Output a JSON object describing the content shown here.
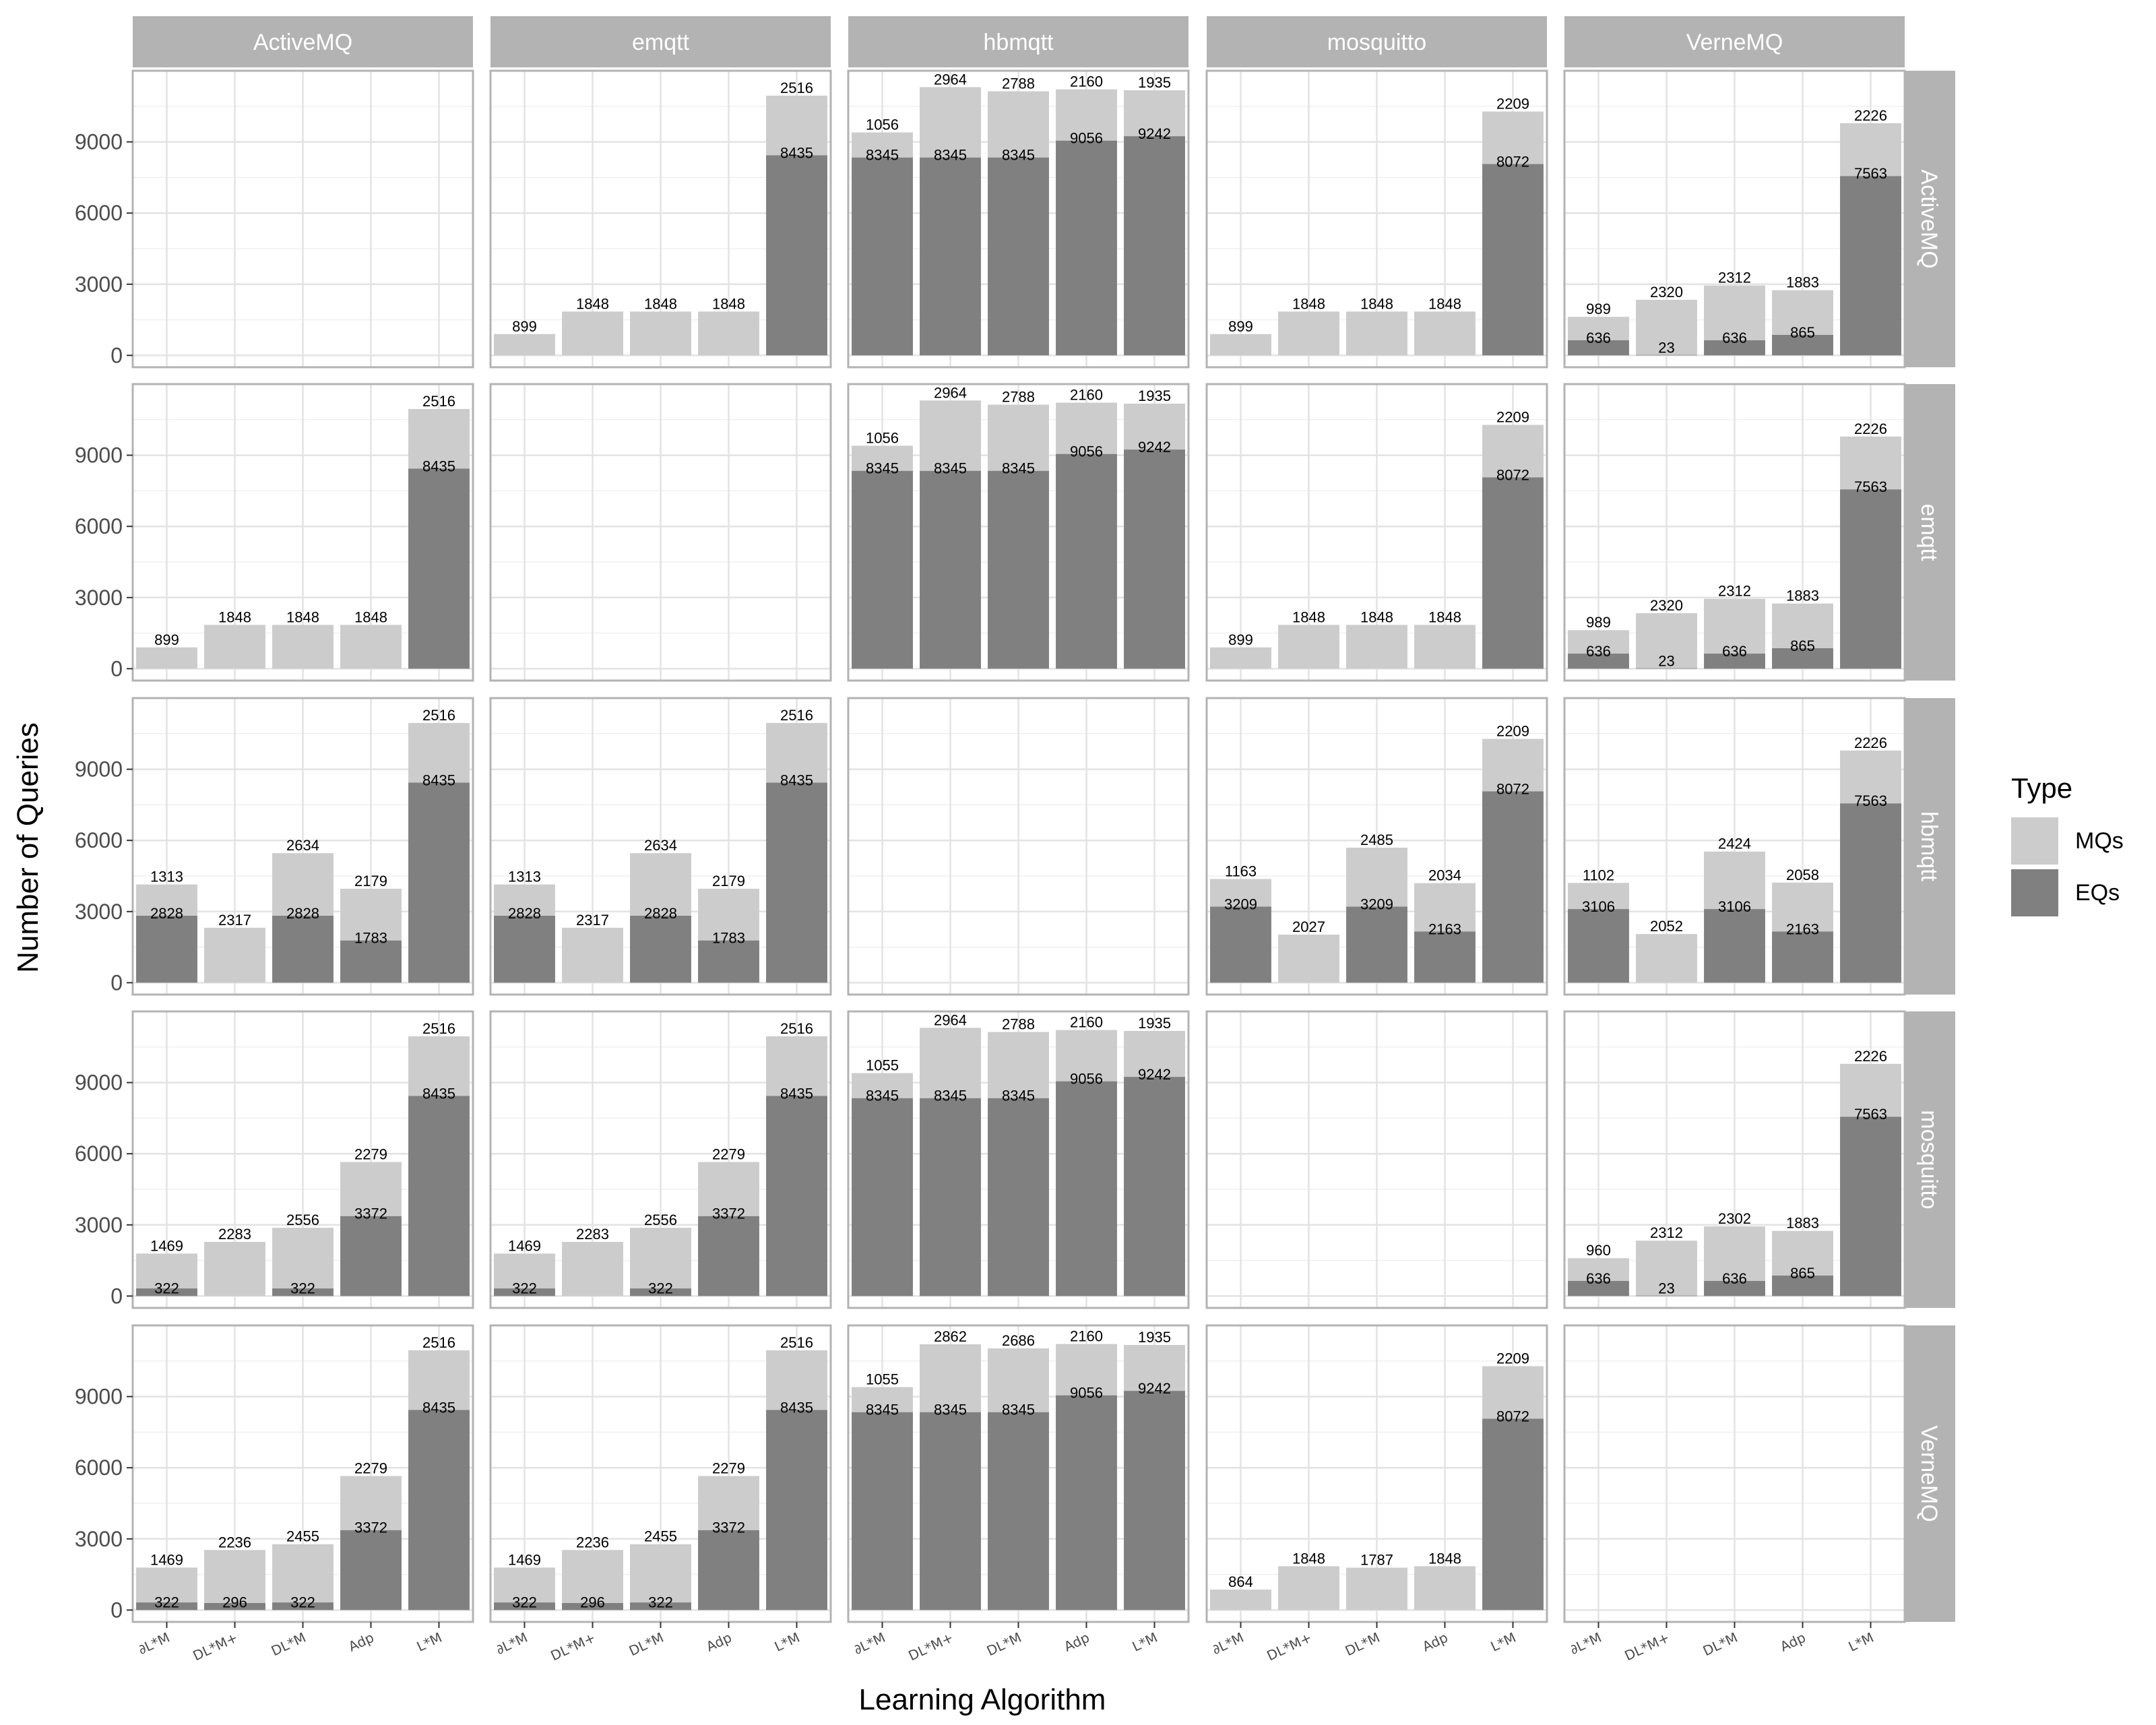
{
  "chart_data": {
    "type": "bar",
    "stacked": true,
    "faceted": true,
    "xlabel": "Learning Algorithm",
    "ylabel": "Number of Queries",
    "categories": [
      "∂L*M",
      "DL*M+",
      "DL*M",
      "Adp",
      "L*M"
    ],
    "column_facets": [
      "ActiveMQ",
      "emqtt",
      "hbmqtt",
      "mosquitto",
      "VerneMQ"
    ],
    "row_facets": [
      "ActiveMQ",
      "emqtt",
      "hbmqtt",
      "mosquitto",
      "VerneMQ"
    ],
    "yticks": [
      0,
      3000,
      6000,
      9000
    ],
    "ylim": [
      -500,
      12000
    ],
    "grid": true,
    "legend": {
      "title": "Type",
      "position": "right",
      "items": [
        {
          "label": "MQs",
          "color": "#cccccc"
        },
        {
          "label": "EQs",
          "color": "#808080"
        }
      ]
    },
    "series_order": [
      "EQs",
      "MQs"
    ],
    "panels": [
      {
        "row": "ActiveMQ",
        "col": "ActiveMQ",
        "empty": true
      },
      {
        "row": "ActiveMQ",
        "col": "emqtt",
        "EQs": [
          0,
          0,
          0,
          0,
          8435
        ],
        "MQs": [
          899,
          1848,
          1848,
          1848,
          2516
        ]
      },
      {
        "row": "ActiveMQ",
        "col": "hbmqtt",
        "EQs": [
          8345,
          8345,
          8345,
          9056,
          9242
        ],
        "MQs": [
          1056,
          2964,
          2788,
          2160,
          1935
        ]
      },
      {
        "row": "ActiveMQ",
        "col": "mosquitto",
        "EQs": [
          0,
          0,
          0,
          0,
          8072
        ],
        "MQs": [
          899,
          1848,
          1848,
          1848,
          2209
        ]
      },
      {
        "row": "ActiveMQ",
        "col": "VerneMQ",
        "EQs": [
          636,
          23,
          636,
          865,
          7563
        ],
        "MQs": [
          989,
          2320,
          2312,
          1883,
          2226
        ]
      },
      {
        "row": "emqtt",
        "col": "ActiveMQ",
        "EQs": [
          0,
          0,
          0,
          0,
          8435
        ],
        "MQs": [
          899,
          1848,
          1848,
          1848,
          2516
        ]
      },
      {
        "row": "emqtt",
        "col": "emqtt",
        "empty": true
      },
      {
        "row": "emqtt",
        "col": "hbmqtt",
        "EQs": [
          8345,
          8345,
          8345,
          9056,
          9242
        ],
        "MQs": [
          1056,
          2964,
          2788,
          2160,
          1935
        ]
      },
      {
        "row": "emqtt",
        "col": "mosquitto",
        "EQs": [
          0,
          0,
          0,
          0,
          8072
        ],
        "MQs": [
          899,
          1848,
          1848,
          1848,
          2209
        ]
      },
      {
        "row": "emqtt",
        "col": "VerneMQ",
        "EQs": [
          636,
          23,
          636,
          865,
          7563
        ],
        "MQs": [
          989,
          2320,
          2312,
          1883,
          2226
        ]
      },
      {
        "row": "hbmqtt",
        "col": "ActiveMQ",
        "EQs": [
          2828,
          0,
          2828,
          1783,
          8435
        ],
        "MQs": [
          1313,
          2317,
          2634,
          2179,
          2516
        ]
      },
      {
        "row": "hbmqtt",
        "col": "emqtt",
        "EQs": [
          2828,
          0,
          2828,
          1783,
          8435
        ],
        "MQs": [
          1313,
          2317,
          2634,
          2179,
          2516
        ]
      },
      {
        "row": "hbmqtt",
        "col": "hbmqtt",
        "empty": true
      },
      {
        "row": "hbmqtt",
        "col": "mosquitto",
        "EQs": [
          3209,
          0,
          3209,
          2163,
          8072
        ],
        "MQs": [
          1163,
          2027,
          2485,
          2034,
          2209
        ]
      },
      {
        "row": "hbmqtt",
        "col": "VerneMQ",
        "EQs": [
          3106,
          0,
          3106,
          2163,
          7563
        ],
        "MQs": [
          1102,
          2052,
          2424,
          2058,
          2226
        ]
      },
      {
        "row": "mosquitto",
        "col": "ActiveMQ",
        "EQs": [
          322,
          0,
          322,
          3372,
          8435
        ],
        "MQs": [
          1469,
          2283,
          2556,
          2279,
          2516
        ]
      },
      {
        "row": "mosquitto",
        "col": "emqtt",
        "EQs": [
          322,
          0,
          322,
          3372,
          8435
        ],
        "MQs": [
          1469,
          2283,
          2556,
          2279,
          2516
        ]
      },
      {
        "row": "mosquitto",
        "col": "hbmqtt",
        "EQs": [
          8345,
          8345,
          8345,
          9056,
          9242
        ],
        "MQs": [
          1055,
          2964,
          2788,
          2160,
          1935
        ]
      },
      {
        "row": "mosquitto",
        "col": "mosquitto",
        "empty": true
      },
      {
        "row": "mosquitto",
        "col": "VerneMQ",
        "EQs": [
          636,
          23,
          636,
          865,
          7563
        ],
        "MQs": [
          960,
          2312,
          2302,
          1883,
          2226
        ]
      },
      {
        "row": "VerneMQ",
        "col": "ActiveMQ",
        "EQs": [
          322,
          296,
          322,
          3372,
          8435
        ],
        "MQs": [
          1469,
          2236,
          2455,
          2279,
          2516
        ]
      },
      {
        "row": "VerneMQ",
        "col": "emqtt",
        "EQs": [
          322,
          296,
          322,
          3372,
          8435
        ],
        "MQs": [
          1469,
          2236,
          2455,
          2279,
          2516
        ]
      },
      {
        "row": "VerneMQ",
        "col": "hbmqtt",
        "EQs": [
          8345,
          8345,
          8345,
          9056,
          9242
        ],
        "MQs": [
          1055,
          2862,
          2686,
          2160,
          1935
        ]
      },
      {
        "row": "VerneMQ",
        "col": "mosquitto",
        "EQs": [
          0,
          0,
          0,
          0,
          8072
        ],
        "MQs": [
          864,
          1848,
          1787,
          1848,
          2209
        ]
      },
      {
        "row": "VerneMQ",
        "col": "VerneMQ",
        "empty": true
      }
    ]
  }
}
